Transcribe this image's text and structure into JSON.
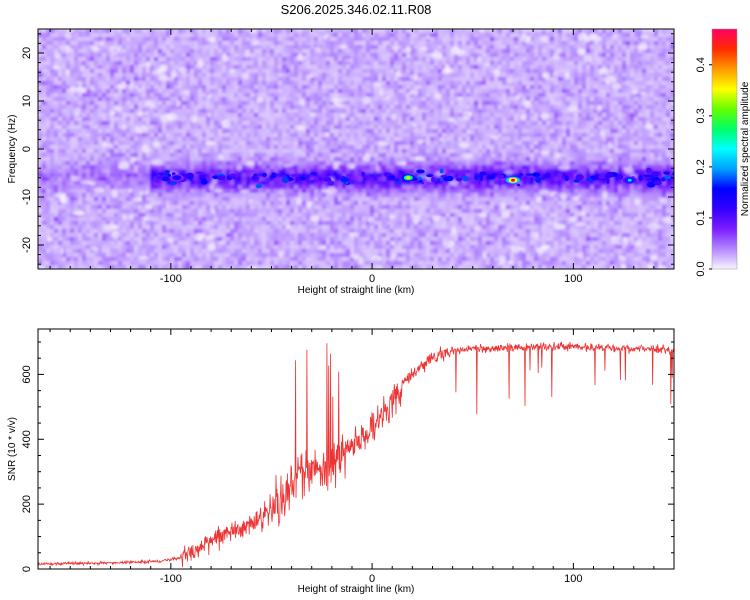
{
  "title": "S206.2025.346.02.11.R08",
  "chart_data": [
    {
      "type": "heatmap",
      "xlabel": "Height of straight line (km)",
      "ylabel": "Frequency (Hz)",
      "xlim": [
        -166,
        150
      ],
      "ylim": [
        -25,
        25
      ],
      "xticks": [
        -100,
        0,
        100
      ],
      "yticks": [
        -20,
        -10,
        0,
        10,
        20
      ],
      "grid": false,
      "colorbar": {
        "label": "Normalized spectral amplitude",
        "range": [
          0,
          0.47
        ],
        "ticks": [
          0.0,
          0.1,
          0.2,
          0.3,
          0.4
        ],
        "colormap": [
          "#f8f4ff",
          "#b388ff",
          "#7c1cff",
          "#3300ff",
          "#0000ff",
          "#00a0ff",
          "#00ffff",
          "#00ff66",
          "#66ff00",
          "#ffff00",
          "#ff9900",
          "#ff2a00",
          "#ff0066"
        ]
      },
      "signal_band_hz": [
        -9,
        -3
      ],
      "hotspots": [
        {
          "x": 18,
          "y": -6,
          "value": 0.36
        },
        {
          "x": 70,
          "y": -6.5,
          "value": 0.47
        },
        {
          "x": 128,
          "y": -6.5,
          "value": 0.22
        },
        {
          "x": -97,
          "y": -6,
          "value": 0.16
        }
      ]
    },
    {
      "type": "line",
      "xlabel": "Height of straight line (km)",
      "ylabel": "SNR (10 * v/v)",
      "xlim": [
        -166,
        150
      ],
      "ylim": [
        0,
        740
      ],
      "xticks": [
        -100,
        0,
        100
      ],
      "yticks": [
        0,
        200,
        400,
        600
      ],
      "grid": false,
      "color": "#ee3333",
      "x": [
        -166,
        -140,
        -120,
        -105,
        -95,
        -88,
        -80,
        -70,
        -60,
        -50,
        -42,
        -36,
        -30,
        -25,
        -20,
        -15,
        -10,
        -5,
        0,
        5,
        10,
        15,
        20,
        25,
        30,
        40,
        50,
        60,
        80,
        100,
        120,
        140,
        150
      ],
      "y": [
        15,
        18,
        20,
        25,
        35,
        60,
        90,
        110,
        140,
        180,
        230,
        280,
        310,
        300,
        330,
        360,
        380,
        400,
        430,
        470,
        520,
        570,
        600,
        630,
        650,
        670,
        680,
        680,
        685,
        685,
        680,
        680,
        675
      ]
    }
  ]
}
